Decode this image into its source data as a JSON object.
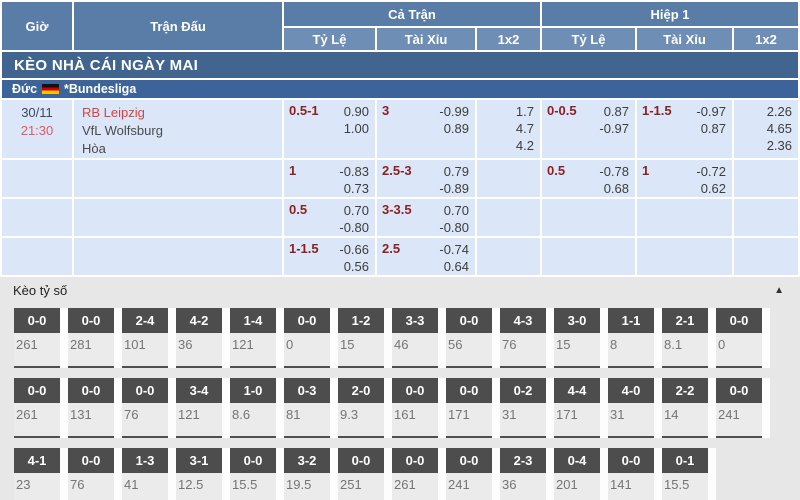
{
  "colors": {
    "header-blue": "#5a7da8",
    "subheader-blue": "#6e8eb5",
    "banner-blue": "#41658e",
    "league-blue": "#3c649a",
    "row-bg": "#dbe7f8",
    "line-red": "#8d1f1f",
    "team-red": "#e23d3d",
    "time-red": "#e8575f",
    "box-gray": "#4d4d4d"
  },
  "header": {
    "col_time": "Giờ",
    "col_match": "Trận Đấu",
    "col_full": "Cả Trận",
    "col_half": "Hiệp 1",
    "sub_odds": "Tỷ Lệ",
    "sub_ou": "Tài Xỉu",
    "sub_1x2": "1x2"
  },
  "section_title": "KÈO NHÀ CÁI NGÀY MAI",
  "league": {
    "country": "Đức",
    "flag": "germany-flag",
    "name": "*Bundesliga"
  },
  "match": {
    "date": "30/11",
    "time": "21:30",
    "home": "RB Leipzig",
    "away": "VfL Wolfsburg",
    "draw_label": "Hòa"
  },
  "odds_rows": [
    {
      "ft_hdp": {
        "line": "0.5-1",
        "top": "0.90",
        "bottom": "1.00"
      },
      "ft_ou": {
        "line": "3",
        "top": "-0.99",
        "bottom": "0.89"
      },
      "ft_1x2": [
        "1.7",
        "4.7",
        "4.2"
      ],
      "h1_hdp": {
        "line": "0-0.5",
        "top": "0.87",
        "bottom": "-0.97"
      },
      "h1_ou": {
        "line": "1-1.5",
        "top": "-0.97",
        "bottom": "0.87"
      },
      "h1_1x2": [
        "2.26",
        "4.65",
        "2.36"
      ]
    },
    {
      "ft_hdp": {
        "line": "1",
        "top": "-0.83",
        "bottom": "0.73"
      },
      "ft_ou": {
        "line": "2.5-3",
        "top": "0.79",
        "bottom": "-0.89"
      },
      "h1_hdp": {
        "line": "0.5",
        "top": "-0.78",
        "bottom": "0.68"
      },
      "h1_ou": {
        "line": "1",
        "top": "-0.72",
        "bottom": "0.62"
      }
    },
    {
      "ft_hdp": {
        "line": "0.5",
        "top": "0.70",
        "bottom": "-0.80"
      },
      "ft_ou": {
        "line": "3-3.5",
        "top": "0.70",
        "bottom": "-0.80"
      }
    },
    {
      "ft_hdp": {
        "line": "1-1.5",
        "top": "-0.66",
        "bottom": "0.56"
      },
      "ft_ou": {
        "line": "2.5",
        "top": "-0.74",
        "bottom": "0.64"
      }
    }
  ],
  "score_section": {
    "title": "Kèo tỷ số",
    "collapse_icon": "collapse-triangle-up",
    "rows": [
      [
        {
          "score": "0-0",
          "value": "261"
        },
        {
          "score": "0-0",
          "value": "281"
        },
        {
          "score": "2-4",
          "value": "101"
        },
        {
          "score": "4-2",
          "value": "36"
        },
        {
          "score": "1-4",
          "value": "121"
        },
        {
          "score": "0-0",
          "value": "0"
        },
        {
          "score": "1-2",
          "value": "15"
        },
        {
          "score": "3-3",
          "value": "46"
        },
        {
          "score": "0-0",
          "value": "56"
        },
        {
          "score": "4-3",
          "value": "76"
        },
        {
          "score": "3-0",
          "value": "15"
        },
        {
          "score": "1-1",
          "value": "8"
        },
        {
          "score": "2-1",
          "value": "8.1"
        },
        {
          "score": "0-0",
          "value": "0"
        }
      ],
      [
        {
          "score": "0-0",
          "value": "261"
        },
        {
          "score": "0-0",
          "value": "131"
        },
        {
          "score": "0-0",
          "value": "76"
        },
        {
          "score": "3-4",
          "value": "121"
        },
        {
          "score": "1-0",
          "value": "8.6"
        },
        {
          "score": "0-3",
          "value": "81"
        },
        {
          "score": "2-0",
          "value": "9.3"
        },
        {
          "score": "0-0",
          "value": "161"
        },
        {
          "score": "0-0",
          "value": "171"
        },
        {
          "score": "0-2",
          "value": "31"
        },
        {
          "score": "4-4",
          "value": "171"
        },
        {
          "score": "4-0",
          "value": "31"
        },
        {
          "score": "2-2",
          "value": "14"
        },
        {
          "score": "0-0",
          "value": "241"
        }
      ],
      [
        {
          "score": "4-1",
          "value": "23"
        },
        {
          "score": "0-0",
          "value": "76"
        },
        {
          "score": "1-3",
          "value": "41"
        },
        {
          "score": "3-1",
          "value": "12.5"
        },
        {
          "score": "0-0",
          "value": "15.5"
        },
        {
          "score": "3-2",
          "value": "19.5"
        },
        {
          "score": "0-0",
          "value": "251"
        },
        {
          "score": "0-0",
          "value": "261"
        },
        {
          "score": "0-0",
          "value": "241"
        },
        {
          "score": "2-3",
          "value": "36"
        },
        {
          "score": "0-4",
          "value": "201"
        },
        {
          "score": "0-0",
          "value": "141"
        },
        {
          "score": "0-1",
          "value": "15.5"
        }
      ]
    ]
  }
}
